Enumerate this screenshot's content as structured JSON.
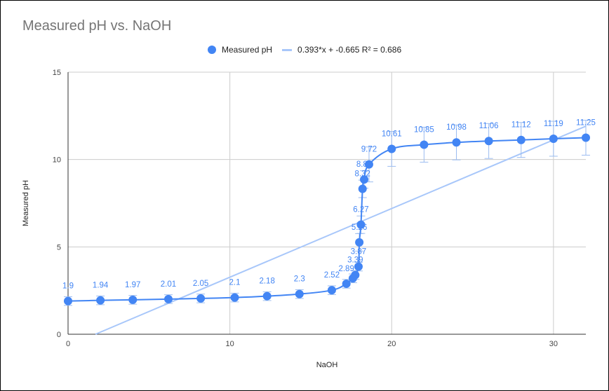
{
  "chart_data": {
    "type": "scatter",
    "title": "Measured pH vs. NaOH",
    "xlabel": "NaOH",
    "ylabel": "Measured pH",
    "xlim": [
      0,
      32
    ],
    "ylim": [
      0,
      15
    ],
    "x_ticks": [
      "0",
      "10",
      "20",
      "30"
    ],
    "y_ticks": [
      "0",
      "5",
      "10",
      "15"
    ],
    "grid": true,
    "legend_position": "top",
    "series": [
      {
        "name": "Measured pH",
        "color": "#4285f4",
        "line": "smooth",
        "error_bars": true,
        "points": [
          {
            "x": 0,
            "y": 1.9,
            "label": "1.9"
          },
          {
            "x": 2,
            "y": 1.94,
            "label": "1.94"
          },
          {
            "x": 4,
            "y": 1.97,
            "label": "1.97"
          },
          {
            "x": 6.2,
            "y": 2.01,
            "label": "2.01"
          },
          {
            "x": 8.2,
            "y": 2.05,
            "label": "2.05"
          },
          {
            "x": 10.3,
            "y": 2.1,
            "label": "2.1"
          },
          {
            "x": 12.3,
            "y": 2.18,
            "label": "2.18"
          },
          {
            "x": 14.3,
            "y": 2.3,
            "label": "2.3"
          },
          {
            "x": 16.3,
            "y": 2.52,
            "label": "2.52"
          },
          {
            "x": 17.2,
            "y": 2.89,
            "label": "2.89"
          },
          {
            "x": 17.6,
            "y": 3.2,
            "label": ""
          },
          {
            "x": 17.75,
            "y": 3.39,
            "label": "3.39"
          },
          {
            "x": 17.95,
            "y": 3.87,
            "label": "3.87"
          },
          {
            "x": 18.0,
            "y": 5.26,
            "label": "5.26"
          },
          {
            "x": 18.1,
            "y": 6.27,
            "label": "6.27"
          },
          {
            "x": 18.2,
            "y": 8.32,
            "label": "8.32"
          },
          {
            "x": 18.3,
            "y": 8.86,
            "label": "8.86"
          },
          {
            "x": 18.6,
            "y": 9.72,
            "label": "9.72"
          },
          {
            "x": 20,
            "y": 10.61,
            "label": "10.61"
          },
          {
            "x": 22,
            "y": 10.85,
            "label": "10.85"
          },
          {
            "x": 24,
            "y": 10.98,
            "label": "10.98"
          },
          {
            "x": 26,
            "y": 11.06,
            "label": "11.06"
          },
          {
            "x": 28,
            "y": 11.12,
            "label": "11.12"
          },
          {
            "x": 30,
            "y": 11.19,
            "label": "11.19"
          },
          {
            "x": 32,
            "y": 11.25,
            "label": "11.25"
          }
        ]
      },
      {
        "name": "0.393*x + -0.665 R² = 0.686",
        "type": "trendline",
        "color": "#a8c7fa",
        "slope": 0.393,
        "intercept": -0.665
      }
    ]
  }
}
